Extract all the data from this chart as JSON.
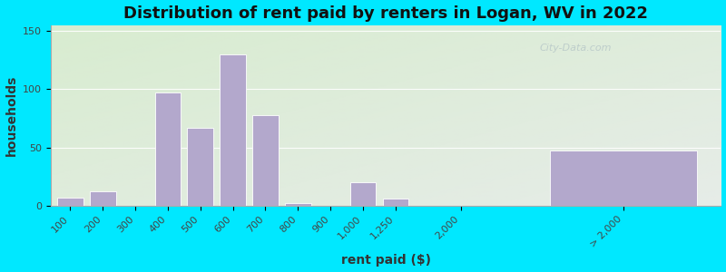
{
  "title": "Distribution of rent paid by renters in Logan, WV in 2022",
  "xlabel": "rent paid ($)",
  "ylabel": "households",
  "bar_color": "#b3a8cc",
  "background_outer": "#00e8ff",
  "bg_top_color": "#d8ecd0",
  "bg_bottom_color": "#f0ecf8",
  "bar_labels": [
    "100",
    "200",
    "300",
    "400",
    "500",
    "600",
    "700",
    "800",
    "900",
    "1,000",
    "1,250",
    "2,000",
    "> 2,000"
  ],
  "bar_values": [
    7,
    12,
    0,
    97,
    67,
    130,
    78,
    2,
    0,
    20,
    6,
    0,
    47
  ],
  "bar_positions": [
    0,
    1,
    2,
    3,
    4,
    5,
    6,
    7,
    8,
    9,
    10,
    12,
    17
  ],
  "bar_widths": [
    0.8,
    0.8,
    0.8,
    0.8,
    0.8,
    0.8,
    0.8,
    0.8,
    0.8,
    0.8,
    0.8,
    0.8,
    4.5
  ],
  "tick_positions": [
    0,
    1,
    2,
    3,
    4,
    5,
    6,
    7,
    8,
    9,
    10,
    12,
    17
  ],
  "ylim": [
    0,
    155
  ],
  "xlim": [
    -0.6,
    20
  ],
  "yticks": [
    0,
    50,
    100,
    150
  ],
  "title_fontsize": 13,
  "axis_label_fontsize": 10,
  "tick_fontsize": 8,
  "watermark_text": "City-Data.com"
}
